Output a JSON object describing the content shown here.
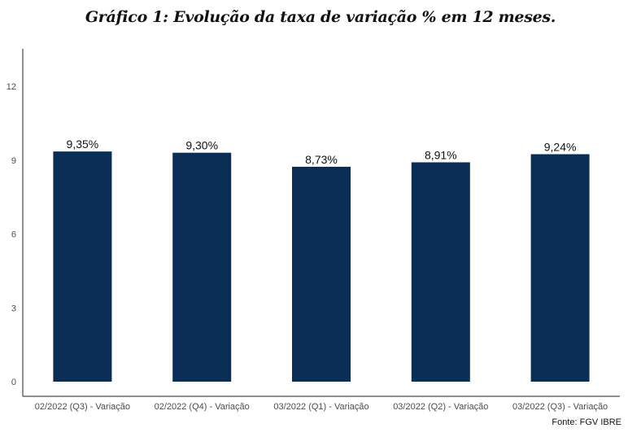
{
  "chart_data": {
    "type": "bar",
    "title": "Gráfico 1: Evolução da taxa de variação % em 12 meses.",
    "categories": [
      "02/2022 (Q3) - Variação",
      "02/2022 (Q4) - Variação",
      "03/2022 (Q1) - Variação",
      "03/2022 (Q2) - Variação",
      "03/2022 (Q3) - Variação"
    ],
    "values": [
      9.35,
      9.3,
      8.73,
      8.91,
      9.24
    ],
    "value_labels": [
      "9,35%",
      "9,30%",
      "8,73%",
      "8,91%",
      "9,24%"
    ],
    "yticks": [
      0,
      3,
      6,
      9,
      12
    ],
    "ylim": [
      0,
      13.5
    ],
    "grid": false,
    "bar_color": "#0a2d55",
    "xlabel": "",
    "ylabel": ""
  },
  "source": "Fonte: FGV IBRE"
}
